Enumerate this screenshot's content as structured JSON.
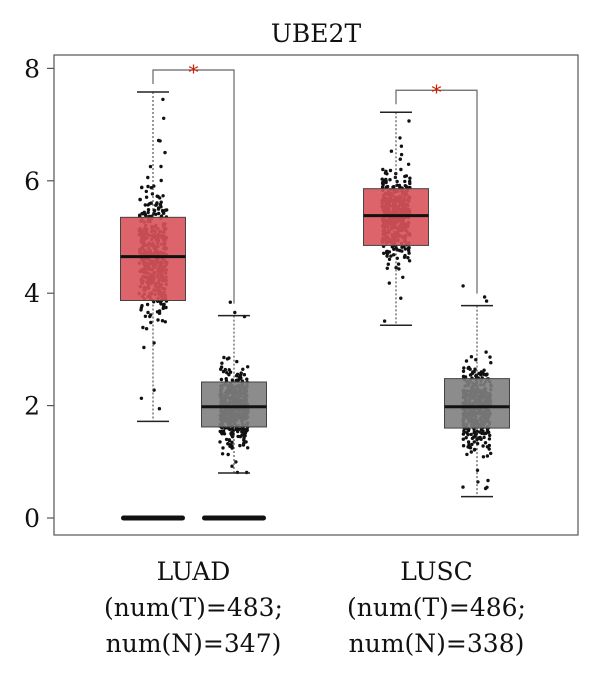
{
  "chart_data": {
    "type": "box",
    "title": "UBE2T",
    "xlabel": "",
    "ylabel": "",
    "ylim": [
      -0.35,
      8.2
    ],
    "yticks": [
      0,
      2,
      4,
      6,
      8
    ],
    "groups": [
      {
        "label_line1": "LUAD",
        "label_line2": "(num(T)=483;",
        "label_line3": "num(N)=347)",
        "significance": "*",
        "boxes": [
          {
            "series": "T",
            "color": "#d9535b",
            "q1": 3.87,
            "median": 4.65,
            "q3": 5.35,
            "whisker_low": 1.72,
            "whisker_high": 7.58,
            "zero_points": true
          },
          {
            "series": "N",
            "color": "#7f7f7f",
            "q1": 1.62,
            "median": 1.98,
            "q3": 2.42,
            "whisker_low": 0.8,
            "whisker_high": 3.6,
            "zero_points": true
          }
        ]
      },
      {
        "label_line1": "LUSC",
        "label_line2": "(num(T)=486;",
        "label_line3": "num(N)=338)",
        "significance": "*",
        "boxes": [
          {
            "series": "T",
            "color": "#d9535b",
            "q1": 4.85,
            "median": 5.38,
            "q3": 5.86,
            "whisker_low": 3.43,
            "whisker_high": 7.22,
            "zero_points": false
          },
          {
            "series": "N",
            "color": "#7f7f7f",
            "q1": 1.6,
            "median": 1.98,
            "q3": 2.48,
            "whisker_low": 0.38,
            "whisker_high": 3.78,
            "zero_points": false
          }
        ]
      }
    ],
    "significance_color": "#cc2200"
  }
}
